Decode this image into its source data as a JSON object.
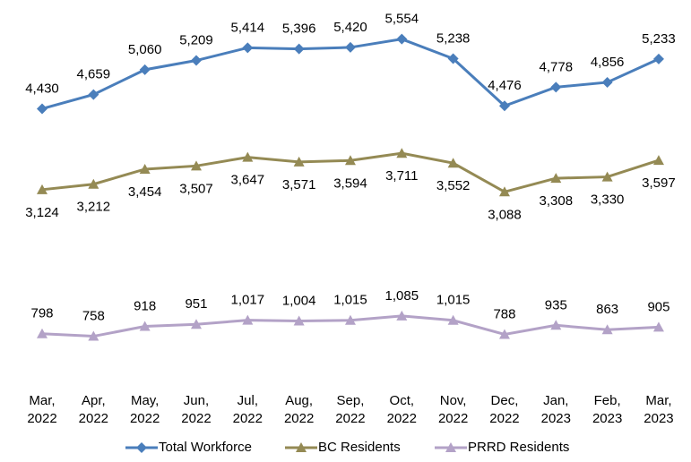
{
  "chart_data": {
    "type": "line",
    "categories": [
      "Mar, 2022",
      "Apr, 2022",
      "May, 2022",
      "Jun, 2022",
      "Jul, 2022",
      "Aug, 2022",
      "Sep, 2022",
      "Oct, 2022",
      "Nov, 2022",
      "Dec, 2022",
      "Jan, 2023",
      "Feb, 2023",
      "Mar, 2023"
    ],
    "series": [
      {
        "name": "Total Workforce",
        "color": "#4a7ebb",
        "marker": "diamond",
        "values": [
          4430,
          4659,
          5060,
          5209,
          5414,
          5396,
          5420,
          5554,
          5238,
          4476,
          4778,
          4856,
          5233
        ],
        "value_labels": [
          "4,430",
          "4,659",
          "5,060",
          "5,209",
          "5,414",
          "5,396",
          "5,420",
          "5,554",
          "5,238",
          "4,476",
          "4,778",
          "4,856",
          "5,233"
        ]
      },
      {
        "name": "BC Residents",
        "color": "#948a54",
        "marker": "triangle",
        "values": [
          3124,
          3212,
          3454,
          3507,
          3647,
          3571,
          3594,
          3711,
          3552,
          3088,
          3308,
          3330,
          3597
        ],
        "value_labels": [
          "3,124",
          "3,212",
          "3,454",
          "3,507",
          "3,647",
          "3,571",
          "3,594",
          "3,711",
          "3,552",
          "3,088",
          "3,308",
          "3,330",
          "3,597"
        ]
      },
      {
        "name": "PRRD Residents",
        "color": "#b3a2c7",
        "marker": "triangle",
        "values": [
          798,
          758,
          918,
          951,
          1017,
          1004,
          1015,
          1085,
          1015,
          788,
          935,
          863,
          905
        ],
        "value_labels": [
          "798",
          "758",
          "918",
          "951",
          "1,017",
          "1,004",
          "1,015",
          "1,085",
          "1,015",
          "788",
          "935",
          "863",
          "905"
        ]
      }
    ],
    "legend": "bottom"
  }
}
